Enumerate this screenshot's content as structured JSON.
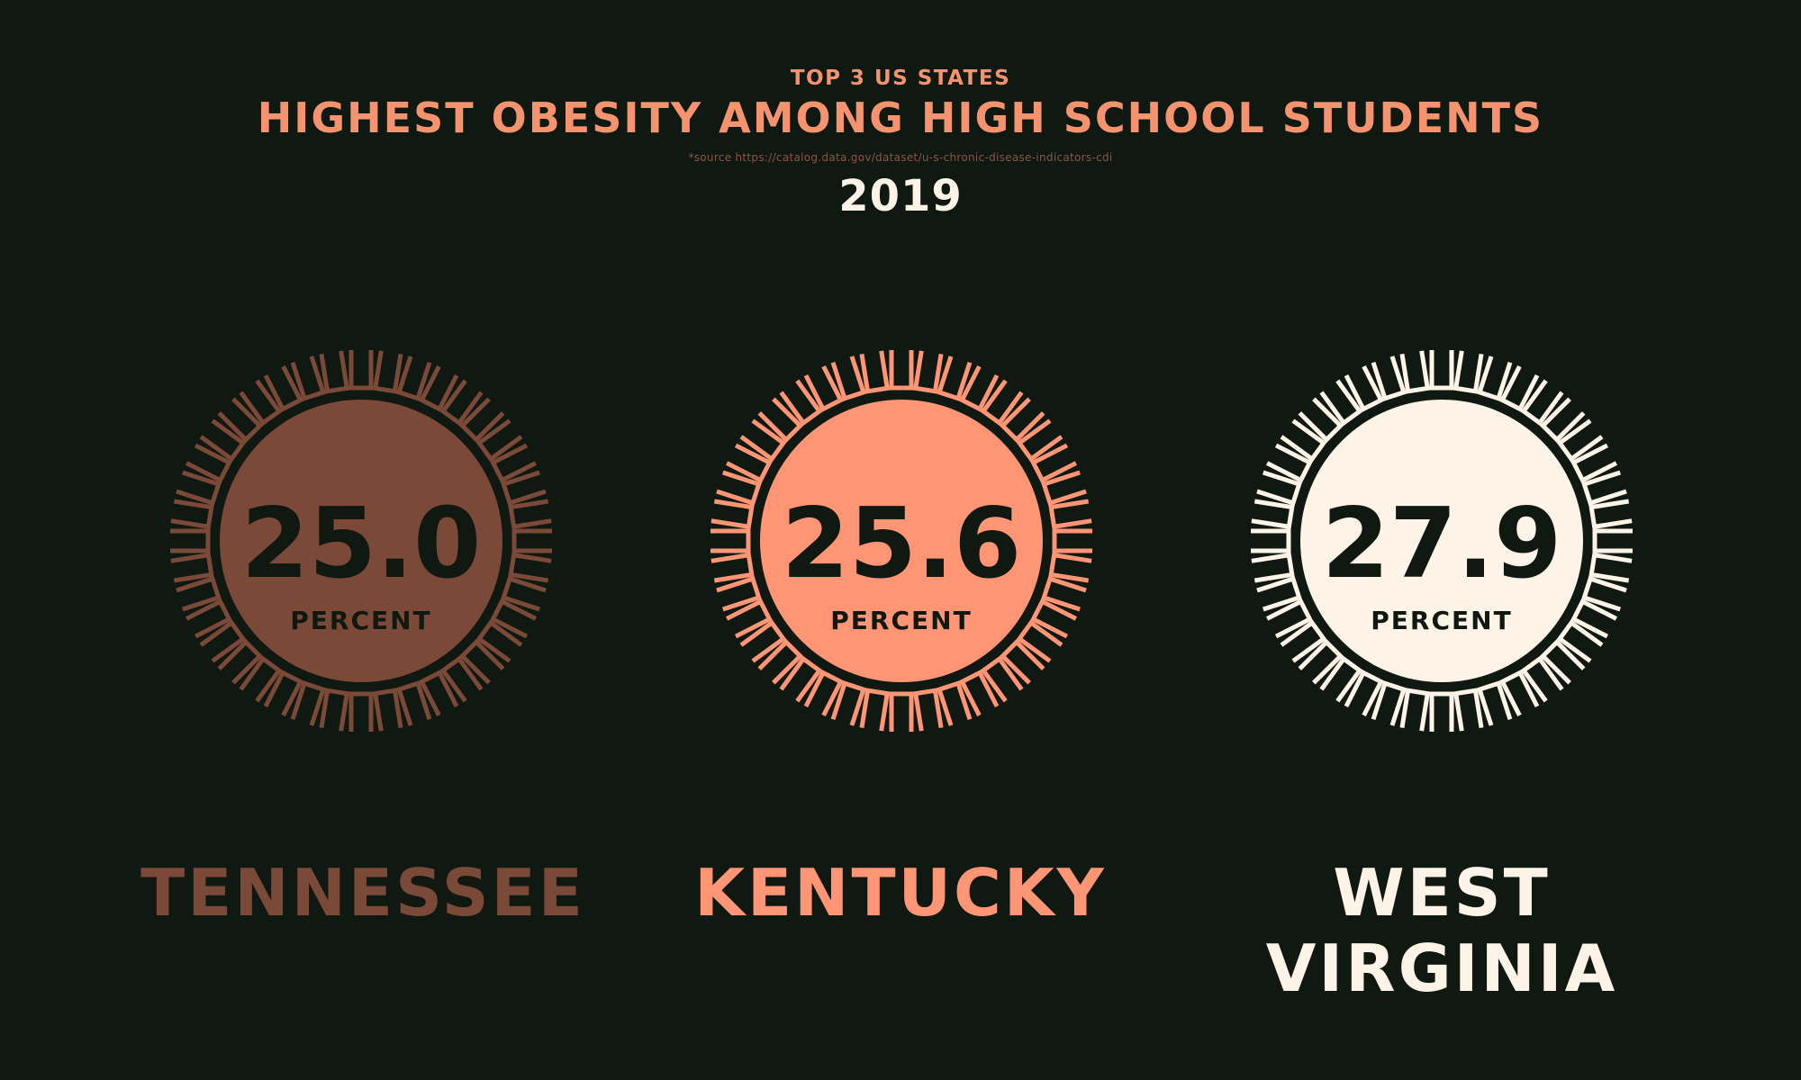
{
  "header": {
    "kicker": "TOP 3 US STATES",
    "title": "HIGHEST OBESITY AMONG HIGH SCHOOL STUDENTS",
    "source": "*source https://catalog.data.gov/dataset/u-s-chronic-disease-indicators-cdi",
    "year": "2019"
  },
  "colors": {
    "background": "#101812",
    "title": "#f5936f",
    "source": "#8a5642",
    "year": "#fdf3e6",
    "number_text": "#101812"
  },
  "chart_data": {
    "type": "gauge",
    "unit_label": "PERCENT",
    "items": [
      {
        "state": "TENNESSEE",
        "value": "25.0",
        "color": "#7a4937"
      },
      {
        "state": "KENTUCKY",
        "value": "25.6",
        "color": "#fe9575"
      },
      {
        "state": "WEST VIRGINIA",
        "value": "27.9",
        "color": "#fdf3e6"
      }
    ]
  }
}
